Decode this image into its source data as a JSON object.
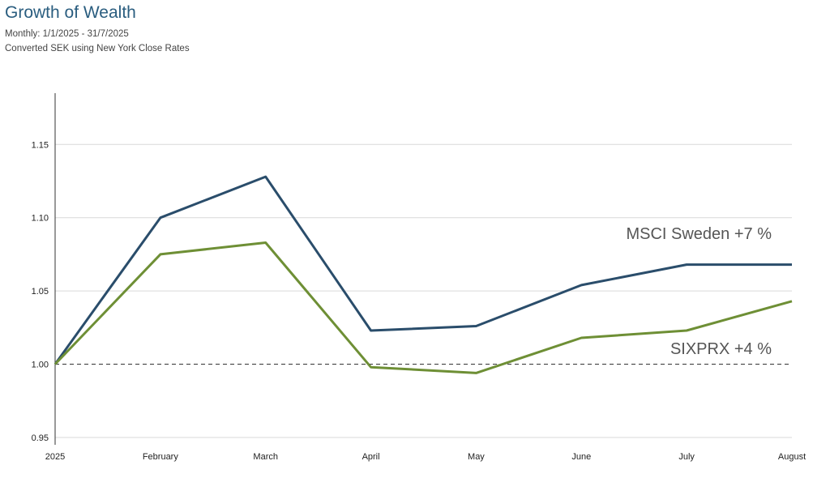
{
  "title": "Growth of Wealth",
  "subtitle_lines": [
    "Monthly: 1/1/2025 - 31/7/2025",
    "Converted SEK using New York Close Rates"
  ],
  "colors": {
    "msci": "#2a4d6b",
    "sixprx": "#6e8f35",
    "grid": "#d9d9d9",
    "baseline": "#333333",
    "title": "#2a5d7f"
  },
  "chart_data": {
    "type": "line",
    "title": "Growth of Wealth",
    "x": [
      "2025",
      "February",
      "March",
      "April",
      "May",
      "June",
      "July",
      "August"
    ],
    "ylim": [
      0.945,
      1.185
    ],
    "yticks": [
      0.95,
      1.0,
      1.05,
      1.1,
      1.15
    ],
    "ytick_labels": [
      "0.95",
      "1.00",
      "1.05",
      "1.10",
      "1.15"
    ],
    "grid": true,
    "reference_line": 1.0,
    "series": [
      {
        "name": "MSCI Sweden",
        "key": "msci",
        "values": [
          1.0,
          1.1,
          1.128,
          1.023,
          1.026,
          1.054,
          1.068,
          1.068
        ],
        "annotation": "MSCI Sweden +7 %"
      },
      {
        "name": "SIXPRX",
        "key": "sixprx",
        "values": [
          1.0,
          1.075,
          1.083,
          0.998,
          0.994,
          1.018,
          1.023,
          1.043
        ],
        "annotation": "SIXPRX +4 %"
      }
    ]
  }
}
